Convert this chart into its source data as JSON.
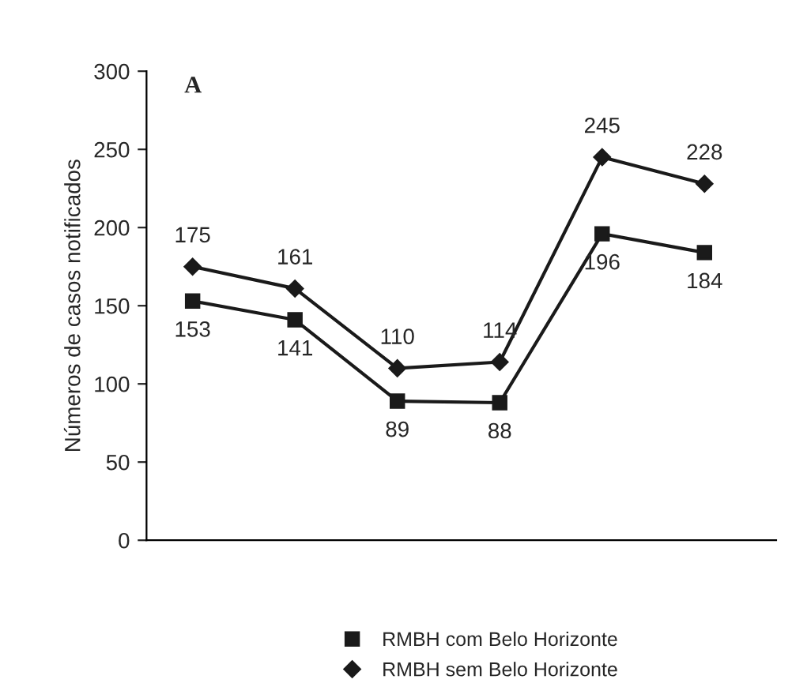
{
  "chart_data": {
    "type": "line",
    "title": "A",
    "ylabel": "Números de casos notificados",
    "categories": [
      null,
      null,
      null,
      null,
      null,
      null
    ],
    "series": [
      {
        "name": "RMBH com Belo Horizonte",
        "color": "#1a1a1a",
        "marker": "square",
        "values": [
          153,
          141,
          89,
          88,
          196,
          184
        ]
      },
      {
        "name": "RMBH sem Belo Horizonte",
        "color": "#1a1a1a",
        "marker": "diamond",
        "values": [
          175,
          161,
          110,
          114,
          245,
          228
        ]
      }
    ],
    "ylim": [
      0,
      300
    ],
    "yticks": [
      0,
      50,
      100,
      150,
      200,
      250,
      300
    ],
    "data_labels": true,
    "grid": false,
    "legend": "bottom",
    "line_style": "solid"
  }
}
